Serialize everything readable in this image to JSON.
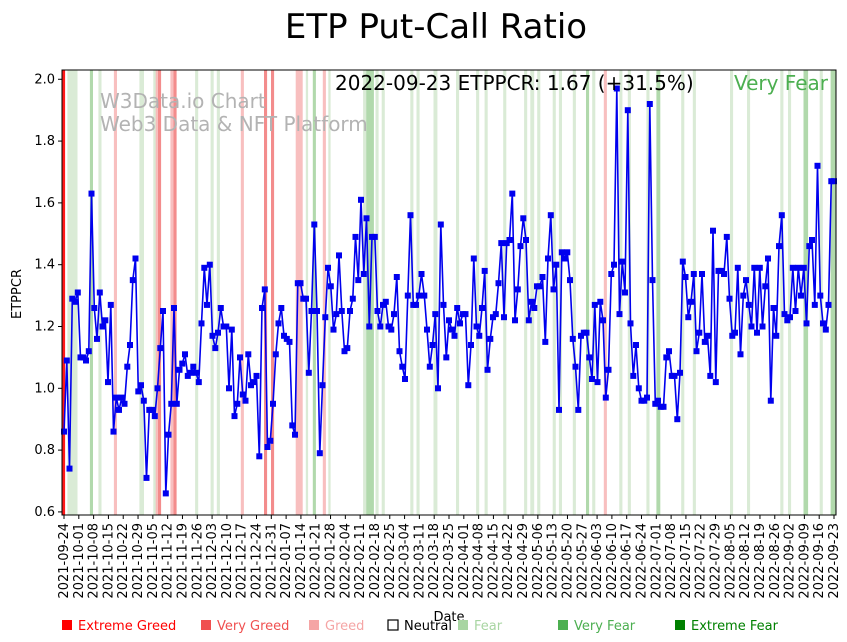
{
  "chart_data": {
    "type": "line",
    "title": "ETP Put-Call Ratio",
    "xlabel": "Date",
    "ylabel": "ETPPCR",
    "ylim": [
      0.59,
      2.03
    ],
    "yticks": [
      "0.6",
      "0.8",
      "1.0",
      "1.2",
      "1.4",
      "1.6",
      "1.8",
      "2.0"
    ],
    "xticks": [
      "2021-09-24",
      "2021-10-01",
      "2021-10-08",
      "2021-10-15",
      "2021-10-22",
      "2021-10-29",
      "2021-11-05",
      "2021-11-12",
      "2021-11-19",
      "2021-11-26",
      "2021-12-03",
      "2021-12-10",
      "2021-12-17",
      "2021-12-24",
      "2021-12-31",
      "2022-01-07",
      "2022-01-14",
      "2022-01-21",
      "2022-01-28",
      "2022-02-04",
      "2022-02-11",
      "2022-02-18",
      "2022-02-25",
      "2022-03-04",
      "2022-03-11",
      "2022-03-18",
      "2022-03-25",
      "2022-04-01",
      "2022-04-08",
      "2022-04-15",
      "2022-04-22",
      "2022-04-29",
      "2022-05-06",
      "2022-05-13",
      "2022-05-20",
      "2022-05-27",
      "2022-06-03",
      "2022-06-10",
      "2022-06-17",
      "2022-06-24",
      "2022-07-01",
      "2022-07-08",
      "2022-07-15",
      "2022-07-22",
      "2022-07-29",
      "2022-08-05",
      "2022-08-12",
      "2022-08-19",
      "2022-08-26",
      "2022-09-02",
      "2022-09-09",
      "2022-09-16",
      "2022-09-23"
    ],
    "annotation": {
      "value_text": "2022-09-23 ETPPCR: 1.67 (+31.5%)",
      "sentiment": "Very Fear",
      "sentiment_color": "#4caf50"
    },
    "watermark": [
      "W3Data.io Chart",
      "Web3 Data & NFT Platform"
    ],
    "series": [
      {
        "name": "ETPPCR",
        "color": "#0000ee",
        "values": [
          0.86,
          1.09,
          0.74,
          1.29,
          1.28,
          1.31,
          1.1,
          1.1,
          1.09,
          1.12,
          1.63,
          1.26,
          1.16,
          1.31,
          1.2,
          1.22,
          1.02,
          1.27,
          0.86,
          0.97,
          0.93,
          0.97,
          0.95,
          1.07,
          1.14,
          1.35,
          1.42,
          0.99,
          1.01,
          0.96,
          0.71,
          0.93,
          0.93,
          0.91,
          1.0,
          1.13,
          1.25,
          0.66,
          0.85,
          0.95,
          1.26,
          0.95,
          1.06,
          1.08,
          1.11,
          1.04,
          1.05,
          1.07,
          1.05,
          1.02,
          1.21,
          1.39,
          1.27,
          1.4,
          1.17,
          1.13,
          1.18,
          1.26,
          1.2,
          1.2,
          1.0,
          1.19,
          0.91,
          0.95,
          1.1,
          0.98,
          0.96,
          1.11,
          1.01,
          1.02,
          1.04,
          0.78,
          1.26,
          1.32,
          0.81,
          0.83,
          0.95,
          1.11,
          1.21,
          1.26,
          1.17,
          1.16,
          1.15,
          0.88,
          0.85,
          1.34,
          1.34,
          1.29,
          1.29,
          1.05,
          1.25,
          1.53,
          1.25,
          0.79,
          1.01,
          1.23,
          1.39,
          1.33,
          1.19,
          1.24,
          1.43,
          1.25,
          1.12,
          1.13,
          1.25,
          1.29,
          1.49,
          1.35,
          1.61,
          1.37,
          1.55,
          1.2,
          1.49,
          1.49,
          1.25,
          1.2,
          1.27,
          1.28,
          1.2,
          1.19,
          1.24,
          1.36,
          1.12,
          1.07,
          1.03,
          1.3,
          1.56,
          1.27,
          1.27,
          1.3,
          1.37,
          1.3,
          1.19,
          1.07,
          1.14,
          1.24,
          1.0,
          1.53,
          1.27,
          1.1,
          1.22,
          1.19,
          1.17,
          1.26,
          1.21,
          1.24,
          1.24,
          1.01,
          1.14,
          1.42,
          1.2,
          1.17,
          1.26,
          1.38,
          1.06,
          1.16,
          1.23,
          1.24,
          1.34,
          1.47,
          1.23,
          1.47,
          1.48,
          1.63,
          1.22,
          1.32,
          1.46,
          1.55,
          1.48,
          1.22,
          1.28,
          1.26,
          1.33,
          1.33,
          1.36,
          1.15,
          1.42,
          1.56,
          1.32,
          1.4,
          0.93,
          1.44,
          1.42,
          1.44,
          1.35,
          1.16,
          1.07,
          0.93,
          1.17,
          1.18,
          1.18,
          1.1,
          1.03,
          1.27,
          1.02,
          1.28,
          1.22,
          0.97,
          1.06,
          1.37,
          1.4,
          1.97,
          1.24,
          1.41,
          1.31,
          1.9,
          1.21,
          1.04,
          1.14,
          1.0,
          0.96,
          0.96,
          0.97,
          1.92,
          1.35,
          0.95,
          0.96,
          0.94,
          0.94,
          1.1,
          1.12,
          1.04,
          1.04,
          0.9,
          1.05,
          1.41,
          1.36,
          1.23,
          1.28,
          1.37,
          1.12,
          1.18,
          1.37,
          1.15,
          1.17,
          1.04,
          1.51,
          1.02,
          1.38,
          1.38,
          1.37,
          1.49,
          1.29,
          1.17,
          1.18,
          1.39,
          1.11,
          1.3,
          1.35,
          1.27,
          1.2,
          1.39,
          1.18,
          1.39,
          1.2,
          1.33,
          1.42,
          0.96,
          1.26,
          1.17,
          1.46,
          1.56,
          1.24,
          1.22,
          1.23,
          1.39,
          1.25,
          1.39,
          1.3,
          1.39,
          1.21,
          1.46,
          1.48,
          1.27,
          1.72,
          1.3,
          1.21,
          1.19,
          1.27,
          1.67,
          1.67
        ]
      }
    ],
    "sentiment_bands": [
      {
        "pos": 0.0,
        "w": 0.004,
        "level": "extreme_greed"
      },
      {
        "pos": 0.007,
        "w": 0.013,
        "level": "fear"
      },
      {
        "pos": 0.036,
        "w": 0.004,
        "level": "very_fear"
      },
      {
        "pos": 0.047,
        "w": 0.004,
        "level": "fear"
      },
      {
        "pos": 0.067,
        "w": 0.004,
        "level": "greed"
      },
      {
        "pos": 0.1,
        "w": 0.006,
        "level": "fear"
      },
      {
        "pos": 0.118,
        "w": 0.005,
        "level": "fear"
      },
      {
        "pos": 0.121,
        "w": 0.003,
        "level": "greed"
      },
      {
        "pos": 0.124,
        "w": 0.004,
        "level": "very_greed"
      },
      {
        "pos": 0.14,
        "w": 0.004,
        "level": "greed"
      },
      {
        "pos": 0.144,
        "w": 0.004,
        "level": "very_greed"
      },
      {
        "pos": 0.172,
        "w": 0.004,
        "level": "fear"
      },
      {
        "pos": 0.192,
        "w": 0.004,
        "level": "fear"
      },
      {
        "pos": 0.2,
        "w": 0.004,
        "level": "fear"
      },
      {
        "pos": 0.231,
        "w": 0.004,
        "level": "greed"
      },
      {
        "pos": 0.261,
        "w": 0.004,
        "level": "very_greed"
      },
      {
        "pos": 0.27,
        "w": 0.004,
        "level": "very_greed"
      },
      {
        "pos": 0.302,
        "w": 0.009,
        "level": "greed"
      },
      {
        "pos": 0.315,
        "w": 0.003,
        "level": "fear"
      },
      {
        "pos": 0.324,
        "w": 0.004,
        "level": "very_fear"
      },
      {
        "pos": 0.337,
        "w": 0.004,
        "level": "greed"
      },
      {
        "pos": 0.344,
        "w": 0.003,
        "level": "fear"
      },
      {
        "pos": 0.389,
        "w": 0.004,
        "level": "fear"
      },
      {
        "pos": 0.393,
        "w": 0.01,
        "level": "very_fear"
      },
      {
        "pos": 0.405,
        "w": 0.004,
        "level": "fear"
      },
      {
        "pos": 0.413,
        "w": 0.004,
        "level": "fear"
      },
      {
        "pos": 0.45,
        "w": 0.004,
        "level": "fear"
      },
      {
        "pos": 0.458,
        "w": 0.004,
        "level": "fear"
      },
      {
        "pos": 0.48,
        "w": 0.005,
        "level": "fear"
      },
      {
        "pos": 0.509,
        "w": 0.004,
        "level": "fear"
      },
      {
        "pos": 0.535,
        "w": 0.004,
        "level": "fear"
      },
      {
        "pos": 0.546,
        "w": 0.004,
        "level": "fear"
      },
      {
        "pos": 0.57,
        "w": 0.004,
        "level": "fear"
      },
      {
        "pos": 0.597,
        "w": 0.004,
        "level": "fear"
      },
      {
        "pos": 0.605,
        "w": 0.005,
        "level": "fear"
      },
      {
        "pos": 0.614,
        "w": 0.004,
        "level": "fear"
      },
      {
        "pos": 0.634,
        "w": 0.004,
        "level": "fear"
      },
      {
        "pos": 0.642,
        "w": 0.004,
        "level": "fear"
      },
      {
        "pos": 0.66,
        "w": 0.004,
        "level": "fear"
      },
      {
        "pos": 0.677,
        "w": 0.004,
        "level": "very_fear"
      },
      {
        "pos": 0.685,
        "w": 0.004,
        "level": "fear"
      },
      {
        "pos": 0.7,
        "w": 0.004,
        "level": "greed"
      },
      {
        "pos": 0.72,
        "w": 0.004,
        "level": "fear"
      },
      {
        "pos": 0.731,
        "w": 0.004,
        "level": "fear"
      },
      {
        "pos": 0.755,
        "w": 0.004,
        "level": "fear"
      },
      {
        "pos": 0.768,
        "w": 0.005,
        "level": "very_fear"
      },
      {
        "pos": 0.8,
        "w": 0.004,
        "level": "fear"
      },
      {
        "pos": 0.815,
        "w": 0.004,
        "level": "fear"
      },
      {
        "pos": 0.863,
        "w": 0.004,
        "level": "fear"
      },
      {
        "pos": 0.885,
        "w": 0.004,
        "level": "fear"
      },
      {
        "pos": 0.928,
        "w": 0.004,
        "level": "fear"
      },
      {
        "pos": 0.938,
        "w": 0.004,
        "level": "fear"
      },
      {
        "pos": 0.958,
        "w": 0.006,
        "level": "very_fear"
      },
      {
        "pos": 0.979,
        "w": 0.004,
        "level": "fear"
      },
      {
        "pos": 0.993,
        "w": 0.007,
        "level": "very_fear"
      }
    ],
    "sentiment_colors": {
      "extreme_greed": "#ff0000",
      "very_greed": "#f28080",
      "greed": "#f7b8b8",
      "fear": "#d6e9d2",
      "very_fear": "#a9d5a3"
    },
    "legend": [
      {
        "label": "Extreme Greed",
        "color": "#ff0000",
        "text_color": "#ff0000",
        "hollow": false
      },
      {
        "label": "Very Greed",
        "color": "#f05050",
        "text_color": "#f05050",
        "hollow": false
      },
      {
        "label": "Greed",
        "color": "#f5a5a5",
        "text_color": "#f5a5a5",
        "hollow": false
      },
      {
        "label": "Neutral",
        "color": "#000000",
        "text_color": "#000000",
        "hollow": true
      },
      {
        "label": "Fear",
        "color": "#a8d5a2",
        "text_color": "#a8d5a2",
        "hollow": false
      },
      {
        "label": "Very Fear",
        "color": "#4caf50",
        "text_color": "#4caf50",
        "hollow": false
      },
      {
        "label": "Extreme Fear",
        "color": "#008000",
        "text_color": "#008000",
        "hollow": false
      }
    ]
  }
}
